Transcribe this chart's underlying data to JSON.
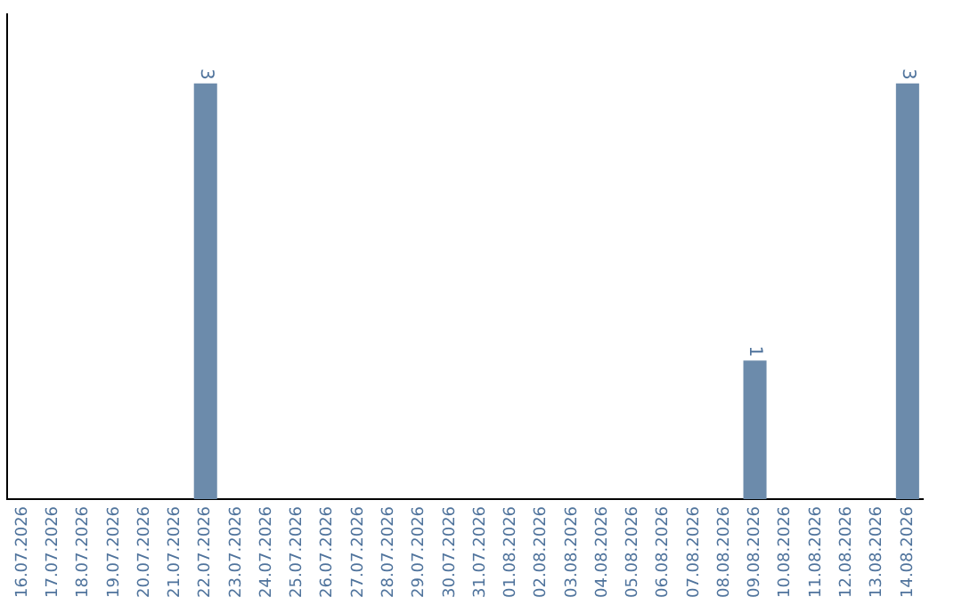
{
  "chart_data": {
    "type": "bar",
    "categories": [
      "16.07.2026",
      "17.07.2026",
      "18.07.2026",
      "19.07.2026",
      "20.07.2026",
      "21.07.2026",
      "22.07.2026",
      "23.07.2026",
      "24.07.2026",
      "25.07.2026",
      "26.07.2026",
      "27.07.2026",
      "28.07.2026",
      "29.07.2026",
      "30.07.2026",
      "31.07.2026",
      "01.08.2026",
      "02.08.2026",
      "03.08.2026",
      "04.08.2026",
      "05.08.2026",
      "06.08.2026",
      "07.08.2026",
      "08.08.2026",
      "09.08.2026",
      "10.08.2026",
      "11.08.2026",
      "12.08.2026",
      "13.08.2026",
      "14.08.2026"
    ],
    "values": [
      null,
      null,
      null,
      null,
      null,
      null,
      3,
      null,
      null,
      null,
      null,
      null,
      null,
      null,
      null,
      null,
      null,
      null,
      null,
      null,
      null,
      null,
      null,
      null,
      1,
      null,
      null,
      null,
      null,
      3
    ],
    "color": "#6c8bab",
    "data_labels": true,
    "grid": false,
    "legend": false
  }
}
